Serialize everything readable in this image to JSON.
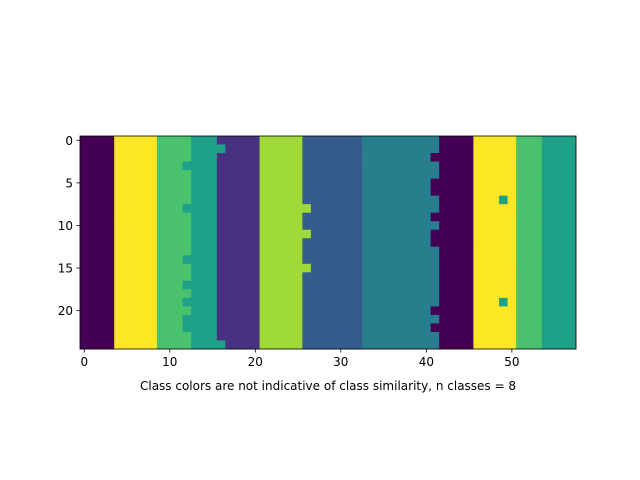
{
  "chart_data": {
    "type": "heatmap",
    "title": "",
    "xlabel": "Class colors are not indicative of class similarity, n classes = 8",
    "ylabel": "",
    "n_classes": 8,
    "n_rows": 25,
    "n_cols": 58,
    "xlim": [
      -0.5,
      57.5
    ],
    "ylim": [
      24.5,
      -0.5
    ],
    "x_ticks": [
      0,
      10,
      20,
      30,
      40,
      50
    ],
    "y_ticks": [
      0,
      5,
      10,
      15,
      20
    ],
    "colormap": "viridis",
    "class_colors": [
      "#440154",
      "#46327e",
      "#365c8d",
      "#277f8e",
      "#1fa187",
      "#4ac16d",
      "#a0da39",
      "#fde725"
    ],
    "column_bands": [
      {
        "from": 0,
        "to": 3,
        "class": 0
      },
      {
        "from": 4,
        "to": 8,
        "class": 7
      },
      {
        "from": 9,
        "to": 12,
        "class": 5
      },
      {
        "from": 13,
        "to": 15,
        "class": 4
      },
      {
        "from": 16,
        "to": 20,
        "class": 1
      },
      {
        "from": 21,
        "to": 25,
        "class": 6
      },
      {
        "from": 26,
        "to": 32,
        "class": 2
      },
      {
        "from": 33,
        "to": 41,
        "class": 3
      },
      {
        "from": 42,
        "to": 45,
        "class": 0
      },
      {
        "from": 46,
        "to": 50,
        "class": 7
      },
      {
        "from": 51,
        "to": 53,
        "class": 5
      },
      {
        "from": 54,
        "to": 57,
        "class": 4
      }
    ],
    "exceptions": [
      {
        "row": 1,
        "col": 16,
        "class": 4
      },
      {
        "row": 24,
        "col": 16,
        "class": 4
      },
      {
        "row": 3,
        "col": 12,
        "class": 4
      },
      {
        "row": 8,
        "col": 12,
        "class": 4
      },
      {
        "row": 14,
        "col": 12,
        "class": 4
      },
      {
        "row": 17,
        "col": 12,
        "class": 4
      },
      {
        "row": 19,
        "col": 12,
        "class": 4
      },
      {
        "row": 21,
        "col": 12,
        "class": 4
      },
      {
        "row": 22,
        "col": 12,
        "class": 4
      },
      {
        "row": 8,
        "col": 26,
        "class": 6
      },
      {
        "row": 11,
        "col": 26,
        "class": 6
      },
      {
        "row": 15,
        "col": 26,
        "class": 6
      },
      {
        "row": 2,
        "col": 41,
        "class": 0
      },
      {
        "row": 5,
        "col": 41,
        "class": 0
      },
      {
        "row": 6,
        "col": 41,
        "class": 0
      },
      {
        "row": 9,
        "col": 41,
        "class": 0
      },
      {
        "row": 11,
        "col": 41,
        "class": 0
      },
      {
        "row": 12,
        "col": 41,
        "class": 0
      },
      {
        "row": 20,
        "col": 41,
        "class": 0
      },
      {
        "row": 22,
        "col": 41,
        "class": 0
      },
      {
        "row": 7,
        "col": 49,
        "class": 4
      },
      {
        "row": 19,
        "col": 49,
        "class": 4
      }
    ]
  }
}
